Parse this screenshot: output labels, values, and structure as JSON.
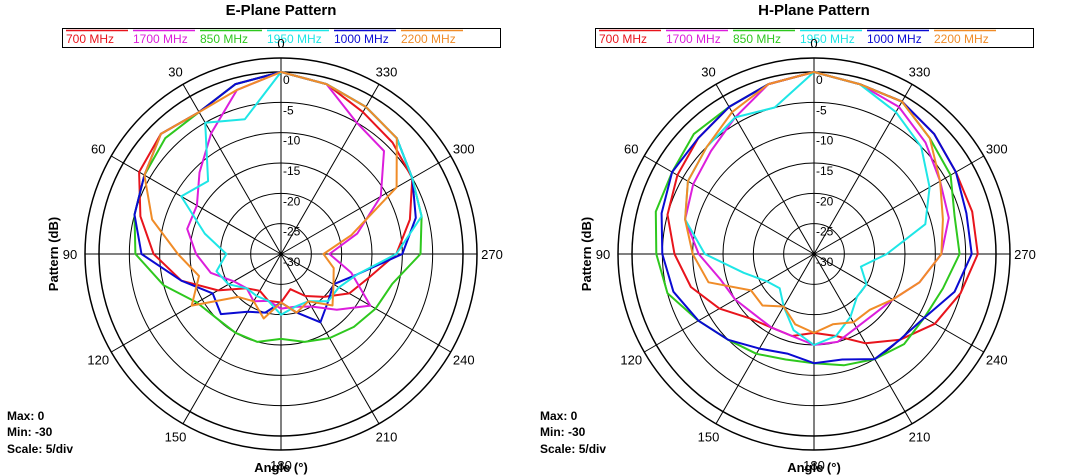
{
  "chart_data": [
    {
      "type": "polar-line",
      "title": "E-Plane Pattern",
      "xlabel": "Angle  (°)",
      "ylabel": "Pattern  (dB)",
      "rlim": [
        -30,
        0
      ],
      "r_ticks": [
        0,
        -5,
        -10,
        -15,
        -20,
        -25,
        -30
      ],
      "angle_ticks": [
        0,
        30,
        60,
        90,
        120,
        150,
        180,
        210,
        240,
        270,
        300,
        330
      ],
      "angle_direction": "counterclockwise, 0 at top",
      "legend_position": "top",
      "grid": true,
      "info": {
        "max": "Max: 0",
        "min": "Min: -30",
        "scale": "Scale: 5/div"
      },
      "series": [
        {
          "name": "700 MHz",
          "color": "#e8141c",
          "angles": [
            0,
            15,
            30,
            45,
            60,
            75,
            90,
            105,
            120,
            135,
            150,
            165,
            180,
            195,
            210,
            225,
            240,
            255,
            270,
            285,
            300,
            315,
            330,
            345
          ],
          "values": [
            0,
            -1,
            -3,
            -2,
            -3,
            -6,
            -9,
            -13,
            -18,
            -22,
            -23,
            -22,
            -22,
            -24,
            -22,
            -20,
            -17,
            -15,
            -11,
            -8,
            -5,
            -4,
            -3,
            -1
          ]
        },
        {
          "name": "850 MHz",
          "color": "#2ec81e",
          "angles": [
            0,
            15,
            30,
            45,
            60,
            75,
            90,
            105,
            120,
            135,
            150,
            165,
            180,
            195,
            210,
            225,
            240,
            255,
            270,
            285,
            300,
            315,
            330,
            345
          ],
          "values": [
            0,
            -1,
            -3,
            -3,
            -4,
            -5,
            -6,
            -10,
            -14,
            -15,
            -15,
            -15,
            -16,
            -15,
            -14,
            -13,
            -12,
            -11,
            -7,
            -6,
            -5,
            -3,
            -2,
            -1
          ]
        },
        {
          "name": "1000 MHz",
          "color": "#0a0ad2",
          "angles": [
            0,
            15,
            30,
            45,
            60,
            75,
            90,
            105,
            120,
            135,
            150,
            165,
            180,
            195,
            210,
            225,
            240,
            255,
            270,
            285,
            300,
            315,
            330,
            345
          ],
          "values": [
            0,
            -1,
            -3,
            -2,
            -4,
            -5,
            -7,
            -13,
            -17,
            -16,
            -19,
            -20,
            -22,
            -20,
            -17,
            -19,
            -20,
            -17,
            -10,
            -7,
            -5,
            -3,
            -2,
            -1
          ]
        },
        {
          "name": "1700 MHz",
          "color": "#dc1edc",
          "angles": [
            0,
            15,
            30,
            45,
            60,
            75,
            90,
            105,
            120,
            135,
            150,
            165,
            180,
            195,
            210,
            225,
            240,
            255,
            270,
            285,
            300,
            315,
            330,
            345
          ],
          "values": [
            0,
            -2,
            -7,
            -11,
            -14,
            -14,
            -16,
            -18,
            -21,
            -22,
            -21,
            -22,
            -21,
            -21,
            -20,
            -17,
            -13,
            -18,
            -22,
            -17,
            -11,
            -6,
            -5,
            -1
          ]
        },
        {
          "name": "1950 MHz",
          "color": "#1ee6e6",
          "angles": [
            0,
            15,
            30,
            45,
            60,
            75,
            90,
            105,
            120,
            135,
            150,
            165,
            180,
            195,
            210,
            225,
            240,
            255,
            270,
            285,
            300,
            315,
            330,
            345
          ],
          "values": [
            0,
            -7,
            -5,
            -13,
            -11,
            -17,
            -21,
            -19,
            -20,
            -22,
            -22,
            -22,
            -20,
            -21,
            -21,
            -19,
            -19,
            -17,
            -11,
            -6,
            -5,
            -3,
            -2,
            -1
          ]
        },
        {
          "name": "2200 MHz",
          "color": "#f08c28",
          "angles": [
            0,
            15,
            30,
            45,
            60,
            75,
            90,
            105,
            120,
            135,
            150,
            165,
            180,
            195,
            210,
            225,
            240,
            255,
            270,
            285,
            300,
            315,
            330,
            345
          ],
          "values": [
            0,
            -2,
            -3,
            -2,
            -4,
            -8,
            -13,
            -16,
            -13,
            -20,
            -21,
            -19,
            -22,
            -20,
            -21,
            -18,
            -20,
            -21,
            -23,
            -18,
            -8,
            -3,
            -2,
            -1
          ]
        }
      ]
    },
    {
      "type": "polar-line",
      "title": "H-Plane Pattern",
      "xlabel": "Angle  (°)",
      "ylabel": "Pattern  (dB)",
      "rlim": [
        -30,
        0
      ],
      "r_ticks": [
        0,
        -5,
        -10,
        -15,
        -20,
        -25,
        -30
      ],
      "angle_ticks": [
        0,
        30,
        60,
        90,
        120,
        150,
        180,
        210,
        240,
        270,
        300,
        330
      ],
      "angle_direction": "counterclockwise, 0 at top",
      "legend_position": "top",
      "grid": true,
      "info": {
        "max": "Max: 0",
        "min": "Min: -30",
        "scale": "Scale: 5/div"
      },
      "series": [
        {
          "name": "700 MHz",
          "color": "#e8141c",
          "angles": [
            0,
            15,
            30,
            45,
            60,
            75,
            90,
            105,
            120,
            135,
            150,
            165,
            180,
            195,
            210,
            225,
            240,
            255,
            270,
            285,
            300,
            315,
            330,
            345
          ],
          "values": [
            0,
            -1,
            -2,
            -3,
            -4,
            -5,
            -7,
            -9,
            -12,
            -15,
            -16,
            -16,
            -17,
            -16,
            -13,
            -10,
            -7,
            -5,
            -3,
            -3,
            -3,
            -2,
            -1,
            -1
          ]
        },
        {
          "name": "850 MHz",
          "color": "#2ec81e",
          "angles": [
            0,
            15,
            30,
            45,
            60,
            75,
            90,
            105,
            120,
            135,
            150,
            165,
            180,
            195,
            210,
            225,
            240,
            255,
            270,
            285,
            300,
            315,
            330,
            345
          ],
          "values": [
            0,
            -1,
            -2,
            -2,
            -3,
            -3,
            -4,
            -5,
            -8,
            -10,
            -11,
            -12,
            -12,
            -11,
            -10,
            -9,
            -9,
            -8,
            -6,
            -6,
            -4,
            -3,
            -1,
            -1
          ]
        },
        {
          "name": "1000 MHz",
          "color": "#0a0ad2",
          "angles": [
            0,
            15,
            30,
            45,
            60,
            75,
            90,
            105,
            120,
            135,
            150,
            165,
            180,
            195,
            210,
            225,
            240,
            255,
            270,
            285,
            300,
            315,
            330,
            345
          ],
          "values": [
            0,
            -1,
            -2,
            -3,
            -3,
            -4,
            -5,
            -6,
            -8,
            -10,
            -12,
            -13,
            -12,
            -12,
            -10,
            -10,
            -9,
            -6,
            -4,
            -4,
            -3,
            -2,
            -1,
            -1
          ]
        },
        {
          "name": "1700 MHz",
          "color": "#dc1edc",
          "angles": [
            0,
            15,
            30,
            45,
            60,
            75,
            90,
            105,
            120,
            135,
            150,
            165,
            180,
            195,
            210,
            225,
            240,
            255,
            270,
            285,
            300,
            315,
            330,
            345
          ],
          "values": [
            0,
            -1,
            -4,
            -6,
            -7,
            -8,
            -11,
            -14,
            -15,
            -16,
            -16,
            -16,
            -15,
            -15,
            -16,
            -16,
            -15,
            -12,
            -9,
            -7,
            -6,
            -4,
            -2,
            -1
          ]
        },
        {
          "name": "1950 MHz",
          "color": "#1ee6e6",
          "angles": [
            0,
            15,
            30,
            45,
            60,
            75,
            90,
            105,
            120,
            135,
            150,
            165,
            180,
            195,
            210,
            225,
            240,
            255,
            270,
            285,
            300,
            315,
            330,
            345
          ],
          "values": [
            0,
            -5,
            -4,
            -5,
            -6,
            -8,
            -12,
            -18,
            -21,
            -22,
            -20,
            -17,
            -15,
            -16,
            -18,
            -20,
            -20,
            -22,
            -18,
            -11,
            -8,
            -5,
            -3,
            -1
          ]
        },
        {
          "name": "2200 MHz",
          "color": "#f08c28",
          "angles": [
            0,
            15,
            30,
            45,
            60,
            75,
            90,
            105,
            120,
            135,
            150,
            165,
            180,
            195,
            210,
            225,
            240,
            255,
            270,
            285,
            300,
            315,
            330,
            345
          ],
          "values": [
            0,
            -1,
            -3,
            -5,
            -6,
            -8,
            -10,
            -12,
            -18,
            -18,
            -20,
            -18,
            -17,
            -18,
            -17,
            -17,
            -15,
            -12,
            -9,
            -8,
            -6,
            -3,
            -1,
            -1
          ]
        }
      ]
    }
  ]
}
